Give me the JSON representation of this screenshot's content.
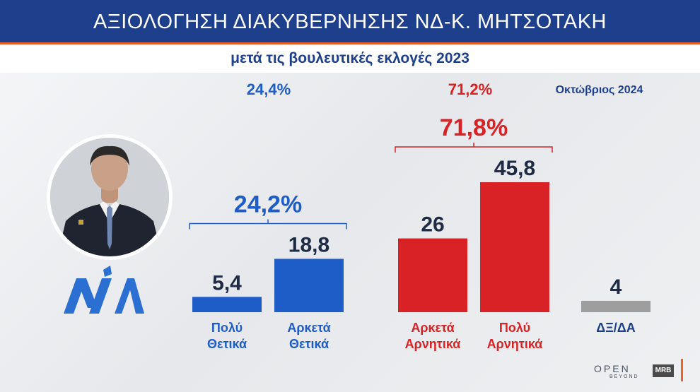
{
  "header": {
    "title": "ΑΞΙΟΛΟΓΗΣΗ ΔΙΑΚΥΒΕΡΝΗΣΗΣ ΝΔ-Κ. ΜΗΤΣΟΤΑΚΗ",
    "subtitle": "μετά τις βουλευτικές εκλογές 2023"
  },
  "previous_totals": {
    "positive": "24,4%",
    "negative": "71,2%"
  },
  "date_label": "Οκτώβριος 2024",
  "branding": {
    "open": "OPEN",
    "open_sub": "BEYOND",
    "pollster": "MRB"
  },
  "colors": {
    "positive": "#1e5cc8",
    "negative": "#d82225",
    "neutral": "#9e9e9e",
    "header": "#1d3f8c",
    "accent": "#e8622a"
  },
  "chart_data": {
    "type": "bar",
    "title": "",
    "xlabel": "",
    "ylabel": "",
    "ylim": [
      0,
      45.8
    ],
    "categories": [
      {
        "key": "very_positive",
        "label_lines": [
          "Πολύ",
          "Θετικά"
        ],
        "value": 5.4,
        "value_label": "5,4",
        "group": "positive"
      },
      {
        "key": "fairly_positive",
        "label_lines": [
          "Αρκετά",
          "Θετικά"
        ],
        "value": 18.8,
        "value_label": "18,8",
        "group": "positive"
      },
      {
        "key": "fairly_negative",
        "label_lines": [
          "Αρκετά",
          "Αρνητικά"
        ],
        "value": 26,
        "value_label": "26",
        "group": "negative"
      },
      {
        "key": "very_negative",
        "label_lines": [
          "Πολύ",
          "Αρνητικά"
        ],
        "value": 45.8,
        "value_label": "45,8",
        "group": "negative"
      },
      {
        "key": "dk_na",
        "label_lines": [
          "ΔΞ/ΔΑ"
        ],
        "value": 4,
        "value_label": "4",
        "group": "neutral"
      }
    ],
    "group_totals": [
      {
        "group": "positive",
        "label": "24,2%",
        "members": [
          0,
          1
        ]
      },
      {
        "group": "negative",
        "label": "71,8%",
        "members": [
          2,
          3
        ]
      }
    ]
  }
}
